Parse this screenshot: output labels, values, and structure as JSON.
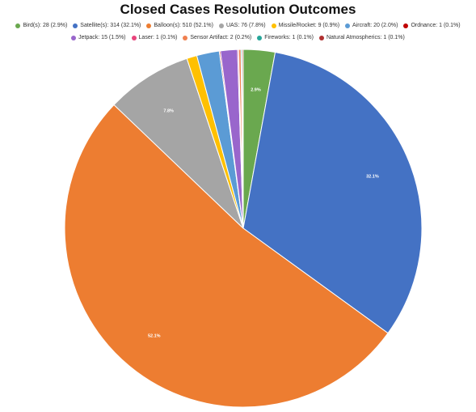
{
  "chart_data": {
    "type": "pie",
    "title": "Closed Cases Resolution Outcomes",
    "legend_position": "top",
    "slices": [
      {
        "legend": "Bird(s): 28 (2.9%)",
        "value": 28,
        "percent_label": "2.9%",
        "color": "#6AA84F"
      },
      {
        "legend": "Satellite(s): 314 (32.1%)",
        "value": 314,
        "percent_label": "32.1%",
        "color": "#4472C4"
      },
      {
        "legend": "Balloon(s): 510 (52.1%)",
        "value": 510,
        "percent_label": "52.1%",
        "color": "#ED7D31"
      },
      {
        "legend": "UAS: 76 (7.8%)",
        "value": 76,
        "percent_label": "7.8%",
        "color": "#A5A5A5"
      },
      {
        "legend": "Missile/Rocket: 9 (0.9%)",
        "value": 9,
        "percent_label": "",
        "color": "#FFC000"
      },
      {
        "legend": "Aircraft: 20 (2.0%)",
        "value": 20,
        "percent_label": "",
        "color": "#5B9BD5"
      },
      {
        "legend": "Ordnance: 1 (0.1%)",
        "value": 1,
        "percent_label": "",
        "color": "#C00000"
      },
      {
        "legend": "Jetpack: 15 (1.5%)",
        "value": 15,
        "percent_label": "",
        "color": "#9966CC"
      },
      {
        "legend": "Laser: 1 (0.1%)",
        "value": 1,
        "percent_label": "",
        "color": "#E8447C"
      },
      {
        "legend": "Sensor Artifact: 2 (0.2%)",
        "value": 2,
        "percent_label": "",
        "color": "#F08050"
      },
      {
        "legend": "Fireworks: 1 (0.1%)",
        "value": 1,
        "percent_label": "",
        "color": "#26A69A"
      },
      {
        "legend": "Natural Atmospherics: 1 (0.1%)",
        "value": 1,
        "percent_label": "",
        "color": "#B03030"
      }
    ]
  }
}
